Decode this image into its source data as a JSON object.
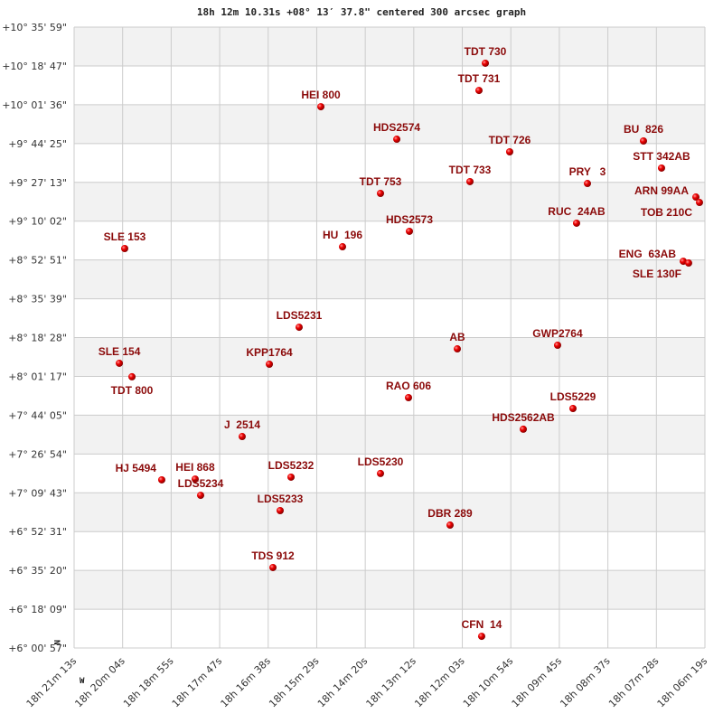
{
  "chart_data": {
    "type": "scatter",
    "title": "18h 12m 10.31s +08° 13′ 37.8\" centered 300 arcsec graph",
    "xlabel": "",
    "ylabel": "",
    "x_units": "RA seconds after 18h00m (decreasing to the right)",
    "y_units": "Declination degrees",
    "xlim": [
      1273,
      379
    ],
    "ylim": [
      6.0158,
      10.5997
    ],
    "grid": true,
    "x_ticks": [
      "18h 21m 13s",
      "18h 20m 04s",
      "18h 18m 55s",
      "18h 17m 47s",
      "18h 16m 38s",
      "18h 15m 29s",
      "18h 14m 20s",
      "18h 13m 12s",
      "18h 12m 03s",
      "18h 10m 54s",
      "18h 09m 45s",
      "18h 08m 37s",
      "18h 07m 28s",
      "18h 06m 19s"
    ],
    "y_ticks": [
      "+10° 35' 59\"",
      "+10° 18' 47\"",
      "+10° 01' 36\"",
      "+9° 44' 25\"",
      "+9° 27' 13\"",
      "+9° 10' 02\"",
      "+8° 52' 51\"",
      "+8° 35' 39\"",
      "+8° 18' 28\"",
      "+8° 01' 17\"",
      "+7° 44' 05\"",
      "+7° 26' 54\"",
      "+7° 09' 43\"",
      "+6° 52' 31\"",
      "+6° 35' 20\"",
      "+6° 18' 09\"",
      "+6° 00' 57\""
    ],
    "compass": {
      "north": "N",
      "west": "W"
    },
    "points": [
      {
        "label": "TDT 730",
        "x": 690.2,
        "y": 10.333
      },
      {
        "label": "TDT 731",
        "x": 699.2,
        "y": 10.132
      },
      {
        "label": "HEI 800",
        "x": 923.3,
        "y": 10.012
      },
      {
        "label": "HDS2574",
        "x": 815.7,
        "y": 9.772
      },
      {
        "label": "TDT 726",
        "x": 655.7,
        "y": 9.679
      },
      {
        "label": "BU  826",
        "x": 466.1,
        "y": 9.759
      },
      {
        "label": "STT 342AB",
        "x": 440.5,
        "y": 9.559
      },
      {
        "label": "TDT 733",
        "x": 712.0,
        "y": 9.459
      },
      {
        "label": "PRY   3",
        "x": 545.5,
        "y": 9.445
      },
      {
        "label": "TDT 753",
        "x": 838.8,
        "y": 9.372
      },
      {
        "label": "ARN 99AA",
        "x": 391.8,
        "y": 9.345
      },
      {
        "label": "TOB 210C",
        "x": 386.7,
        "y": 9.305
      },
      {
        "label": "RUC  24AB",
        "x": 560.9,
        "y": 9.152
      },
      {
        "label": "HDS2573",
        "x": 797.8,
        "y": 9.092
      },
      {
        "label": "HU  196",
        "x": 892.6,
        "y": 8.978
      },
      {
        "label": "SLE 153",
        "x": 1201.3,
        "y": 8.965
      },
      {
        "label": "ENG  63AB",
        "x": 409.7,
        "y": 8.871
      },
      {
        "label": "SLE 130F",
        "x": 402.1,
        "y": 8.858
      },
      {
        "label": "LDS5231",
        "x": 954.1,
        "y": 8.384
      },
      {
        "label": "GWP2764",
        "x": 587.8,
        "y": 8.251
      },
      {
        "label": "AB",
        "x": 729.9,
        "y": 8.224
      },
      {
        "label": "KPP1764",
        "x": 996.3,
        "y": 8.111
      },
      {
        "label": "SLE 154",
        "x": 1208.9,
        "y": 8.118
      },
      {
        "label": "TDT 800",
        "x": 1191.0,
        "y": 8.018
      },
      {
        "label": "RAO 606",
        "x": 799.1,
        "y": 7.864
      },
      {
        "label": "LDS5229",
        "x": 566.0,
        "y": 7.784
      },
      {
        "label": "HDS2562AB",
        "x": 636.4,
        "y": 7.631
      },
      {
        "label": "J  2514",
        "x": 1034.8,
        "y": 7.577
      },
      {
        "label": "LDS5230",
        "x": 838.8,
        "y": 7.304
      },
      {
        "label": "LDS5232",
        "x": 965.6,
        "y": 7.277
      },
      {
        "label": "HJ 5494",
        "x": 1148.8,
        "y": 7.257
      },
      {
        "label": "HEI 868",
        "x": 1101.4,
        "y": 7.263
      },
      {
        "label": "LDS5234",
        "x": 1093.7,
        "y": 7.143
      },
      {
        "label": "LDS5233",
        "x": 981.0,
        "y": 7.03
      },
      {
        "label": "DBR 289",
        "x": 740.2,
        "y": 6.923
      },
      {
        "label": "TDS 912",
        "x": 991.2,
        "y": 6.61
      },
      {
        "label": "CFN  14",
        "x": 695.4,
        "y": 6.102
      }
    ],
    "colors": {
      "point": "#e00000",
      "label": "#8b0a0a",
      "stripe": "#f2f2f2",
      "grid": "#cccccc"
    }
  }
}
